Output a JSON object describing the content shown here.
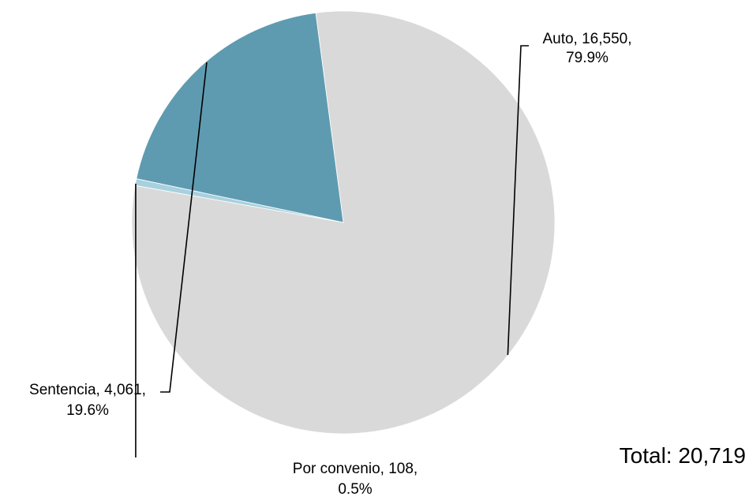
{
  "chart_data": {
    "type": "pie",
    "title": "",
    "start_angle_deg": 262.5,
    "direction": "clockwise",
    "slices": [
      {
        "name": "Auto",
        "value": 16550,
        "value_text": "16,550",
        "percent": 79.9,
        "percent_text": "79.9%",
        "color": "#d9d9d9",
        "label_line1": "Auto, 16,550,",
        "label_line2": "79.9%"
      },
      {
        "name": "Por convenio",
        "value": 108,
        "value_text": "108",
        "percent": 0.5,
        "percent_text": "0.5%",
        "color": "#a8d1df",
        "label_line1": "Por convenio, 108,",
        "label_line2": "0.5%"
      },
      {
        "name": "Sentencia",
        "value": 4061,
        "value_text": "4,061",
        "percent": 19.6,
        "percent_text": "19.6%",
        "color": "#5f9bb0",
        "label_line1": "Sentencia, 4,061,",
        "label_line2": "19.6%"
      }
    ],
    "total_text": "Total: 20,719"
  }
}
